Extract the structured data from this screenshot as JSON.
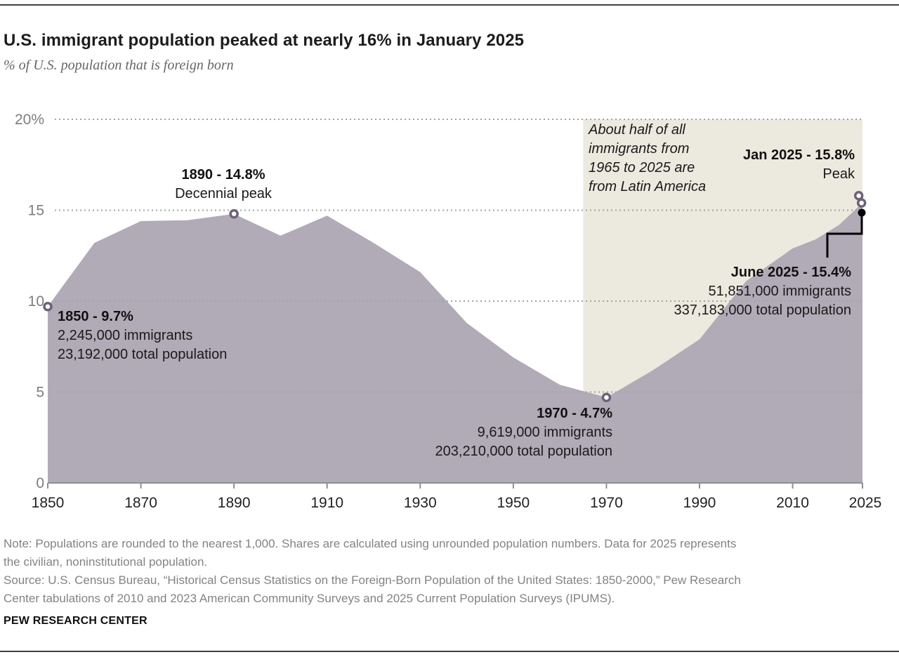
{
  "header": {
    "title": "U.S. immigrant population peaked at nearly 16% in January 2025",
    "subtitle": "% of U.S. population that is foreign born"
  },
  "chart_data": {
    "type": "area",
    "title": "U.S. immigrant population peaked at nearly 16% in January 2025",
    "ylabel": "% of U.S. population that is foreign born",
    "x": [
      1850,
      1860,
      1870,
      1880,
      1890,
      1900,
      1910,
      1920,
      1930,
      1940,
      1950,
      1960,
      1970,
      1980,
      1990,
      2000,
      2010,
      2015,
      2020,
      2025
    ],
    "values": [
      9.7,
      13.2,
      14.4,
      14.45,
      14.8,
      13.6,
      14.7,
      13.2,
      11.6,
      8.8,
      6.9,
      5.4,
      4.7,
      6.2,
      7.9,
      11.1,
      12.9,
      13.4,
      14.2,
      15.4
    ],
    "xlim": [
      1850,
      2025
    ],
    "ylim": [
      0,
      20
    ],
    "yticks": [
      0,
      5,
      10,
      15,
      20
    ],
    "ytick_labels": [
      "0",
      "5",
      "10",
      "15",
      "20%"
    ],
    "xticks": [
      1850,
      1870,
      1890,
      1910,
      1930,
      1950,
      1970,
      1990,
      2010,
      2025
    ],
    "grid": "dotted horizontal",
    "area_color": "#b1aab7",
    "marker_ring_color": "#6c6278",
    "shaded_region": {
      "from": 1965,
      "to": 2025,
      "color": "#ece9df"
    },
    "markers": [
      {
        "label": "1850",
        "year": 1850,
        "value": 9.7,
        "style": "open"
      },
      {
        "label": "1890 decennial peak",
        "year": 1890,
        "value": 14.8,
        "style": "open"
      },
      {
        "label": "1970",
        "year": 1970,
        "value": 4.7,
        "style": "open"
      },
      {
        "label": "Jan 2025 peak",
        "year": 2024.2,
        "value": 15.8,
        "style": "open"
      },
      {
        "label": "June 2025",
        "year": 2024.8,
        "value": 15.4,
        "style": "open"
      }
    ]
  },
  "annotations": {
    "a1890": {
      "line1": "1890 - 14.8%",
      "line2": "Decennial peak"
    },
    "a1850": {
      "line1": "1850 - 9.7%",
      "line2": "2,245,000 immigrants",
      "line3": "23,192,000 total population"
    },
    "a1970": {
      "line1": "1970 - 4.7%",
      "line2": "9,619,000 immigrants",
      "line3": "203,210,000 total population"
    },
    "jan2025": {
      "line1": "Jan 2025 - 15.8%",
      "line2": "Peak"
    },
    "june2025": {
      "line1": "June 2025 - 15.4%",
      "line2": "51,851,000 immigrants",
      "line3": "337,183,000 total population"
    },
    "latam": {
      "line1": "About half of all",
      "line2": "immigrants from",
      "line3": "1965 to 2025 are",
      "line4": "from Latin America"
    }
  },
  "footer": {
    "note_line1": "Note: Populations are rounded to the nearest 1,000. Shares are calculated using unrounded population numbers. Data for 2025 represents",
    "note_line2": "the civilian, noninstitutional population.",
    "source_line1": "Source: U.S. Census Bureau, “Historical Census Statistics on the Foreign-Born Population of the United States: 1850-2000,” Pew Research",
    "source_line2": "Center tabulations of 2010 and 2023 American Community Surveys and 2025 Current Population Surveys (IPUMS).",
    "brand": "PEW RESEARCH CENTER"
  }
}
